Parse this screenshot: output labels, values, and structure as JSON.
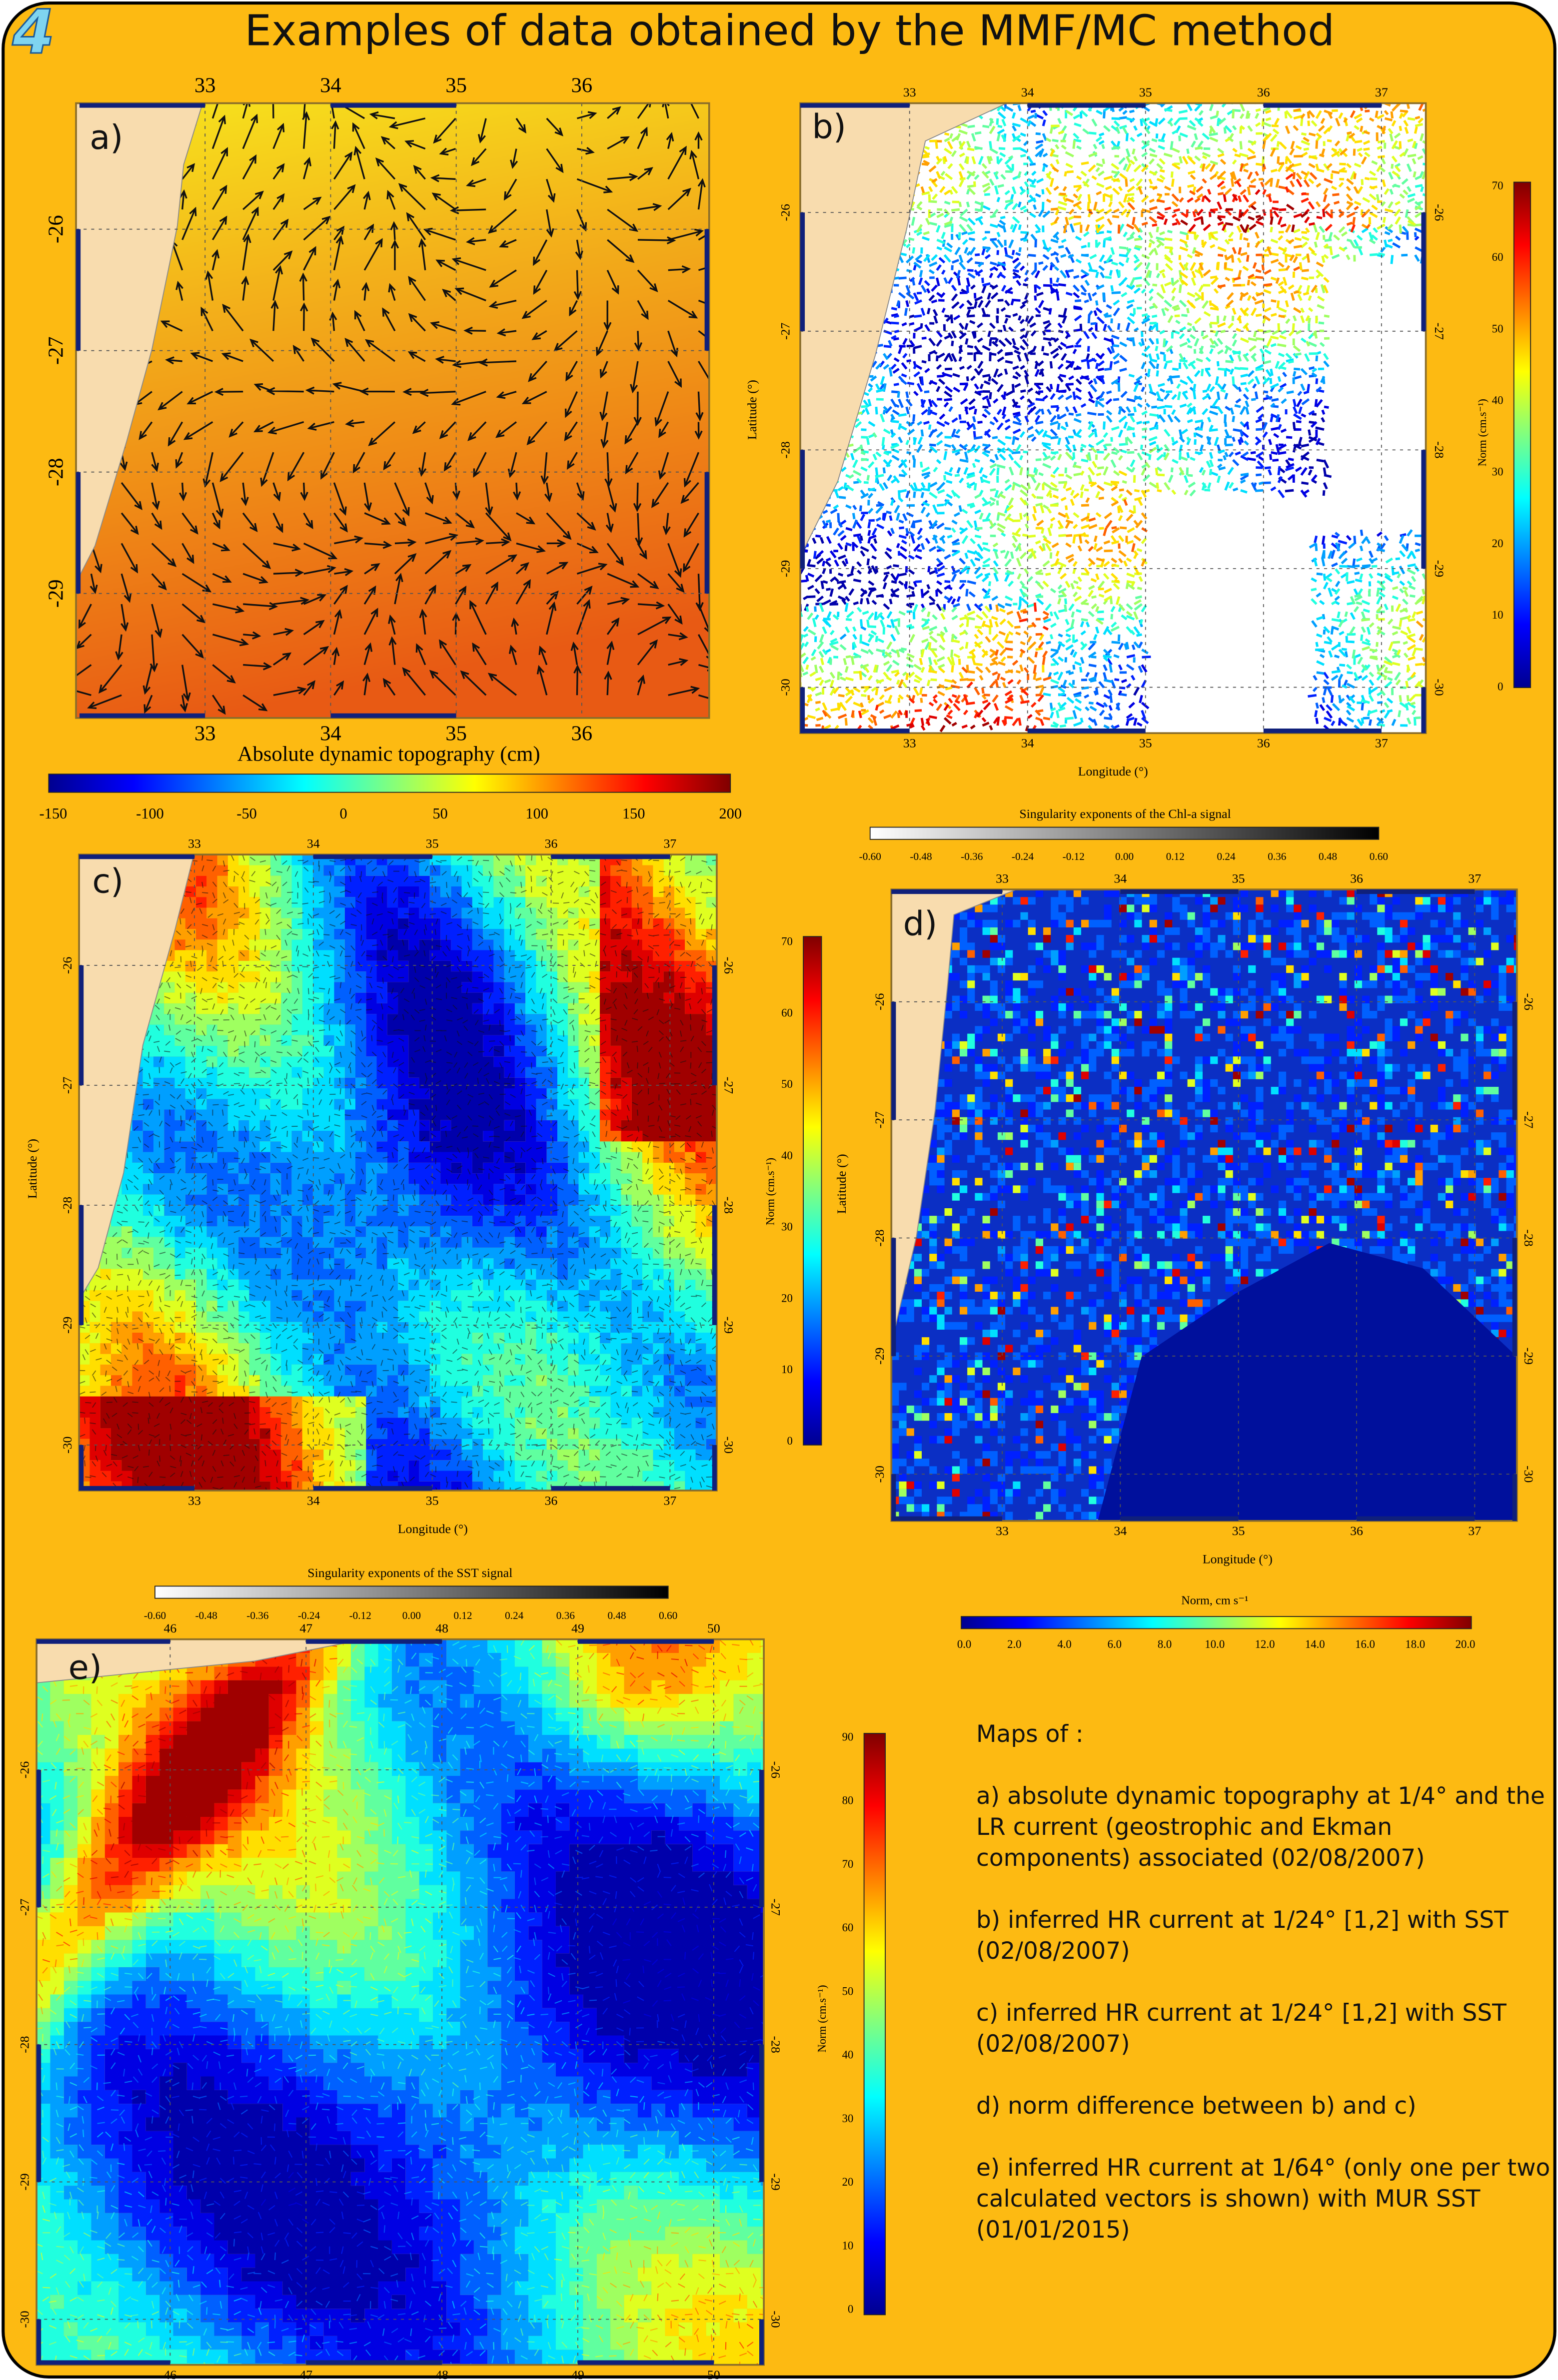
{
  "header": {
    "number": "4",
    "title": "Examples of data obtained by the MMF/MC method"
  },
  "panels": [
    {
      "label": "a)",
      "top_ticks": [
        "33",
        "34",
        "35",
        "36"
      ],
      "bottom_ticks": [
        "33",
        "34",
        "35",
        "36"
      ],
      "left_ticks": [
        "-26",
        "-27",
        "-28",
        "-29"
      ],
      "colorbar": {
        "title": "Absolute dynamic topography (cm)",
        "ticks": [
          "-150",
          "-100",
          "-50",
          "0",
          "50",
          "100",
          "150",
          "200"
        ]
      }
    },
    {
      "label": "b)",
      "top_ticks": [
        "33",
        "34",
        "35",
        "36",
        "37"
      ],
      "bottom_ticks": [
        "33",
        "34",
        "35",
        "36",
        "37"
      ],
      "left_ticks": [
        "-26",
        "-27",
        "-28",
        "-29",
        "-30"
      ],
      "right_ticks": [
        "-26",
        "-27",
        "-28",
        "-29",
        "-30"
      ],
      "x_label": "Longitude (°)",
      "y_label": "Latitude (°)",
      "colorbar": {
        "title": "Norm (cm.s⁻¹)",
        "ticks": [
          "0",
          "10",
          "20",
          "30",
          "40",
          "50",
          "60",
          "70"
        ]
      }
    },
    {
      "label": "c)",
      "top_ticks": [
        "33",
        "34",
        "35",
        "36",
        "37"
      ],
      "bottom_ticks": [
        "33",
        "34",
        "35",
        "36",
        "37"
      ],
      "left_ticks": [
        "-26",
        "-27",
        "-28",
        "-29",
        "-30"
      ],
      "right_ticks": [
        "-26",
        "-27",
        "-28",
        "-29",
        "-30"
      ],
      "x_label": "Longitude (°)",
      "y_label": "Latitude (°)",
      "colorbar": {
        "title": "Norm (cm.s⁻¹)",
        "ticks": [
          "0",
          "10",
          "20",
          "30",
          "40",
          "50",
          "60",
          "70"
        ]
      }
    },
    {
      "label": "d)",
      "top_ticks": [
        "33",
        "34",
        "35",
        "36",
        "37"
      ],
      "bottom_ticks": [
        "33",
        "34",
        "35",
        "36",
        "37"
      ],
      "left_ticks": [
        "-26",
        "-27",
        "-28",
        "-29",
        "-30"
      ],
      "right_ticks": [
        "-26",
        "-27",
        "-28",
        "-29",
        "-30"
      ],
      "x_label": "Longitude (°)",
      "y_label": "Latitude (°)",
      "colorbar": {
        "title": "Norm, cm s⁻¹",
        "ticks": [
          "0.0",
          "2.0",
          "4.0",
          "6.0",
          "8.0",
          "10.0",
          "12.0",
          "14.0",
          "16.0",
          "18.0",
          "20.0"
        ]
      }
    },
    {
      "label": "e)",
      "top_ticks": [
        "46",
        "47",
        "48",
        "49",
        "50"
      ],
      "bottom_ticks": [
        "46",
        "47",
        "48",
        "49",
        "50"
      ],
      "left_ticks": [
        "-26",
        "-27",
        "-28",
        "-29",
        "-30"
      ],
      "right_ticks": [
        "-26",
        "-27",
        "-28",
        "-29",
        "-30"
      ],
      "colorbar": {
        "title": "Norm (cm.s⁻¹)",
        "ticks": [
          "0",
          "10",
          "20",
          "30",
          "40",
          "50",
          "60",
          "70",
          "80",
          "90"
        ]
      }
    }
  ],
  "chl_colorbar": {
    "title": "Singularity exponents of the Chl-a signal",
    "ticks": [
      "-0.60",
      "-0.48",
      "-0.36",
      "-0.24",
      "-0.12",
      "0.00",
      "0.12",
      "0.24",
      "0.36",
      "0.48",
      "0.60"
    ]
  },
  "sst_colorbar": {
    "title": "Singularity exponents of the SST signal",
    "ticks": [
      "-0.60",
      "-0.48",
      "-0.36",
      "-0.24",
      "-0.12",
      "0.00",
      "0.12",
      "0.24",
      "0.36",
      "0.48",
      "0.60"
    ]
  },
  "caption": {
    "heading": "Maps of :",
    "items": [
      "a) absolute dynamic topography at 1/4° and the LR current (geostrophic and Ekman components) associated (02/08/2007)",
      "b) inferred HR current at 1/24° [1,2] with SST (02/08/2007)",
      "c) inferred HR current at 1/24° [1,2] with SST (02/08/2007)",
      "d) norm difference between b) and c)",
      "e) inferred HR current at 1/64° (only one per two calculated vectors is shown) with MUR SST (01/01/2015)"
    ]
  }
}
